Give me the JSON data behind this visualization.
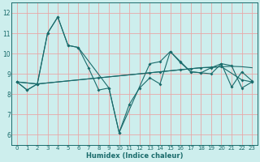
{
  "xlabel": "Humidex (Indice chaleur)",
  "bg_color": "#cdeeed",
  "grid_color": "#e8a8a8",
  "line_color": "#1a6b6b",
  "xlim": [
    -0.5,
    23.5
  ],
  "ylim": [
    5.5,
    12.5
  ],
  "xticks": [
    0,
    1,
    2,
    3,
    4,
    5,
    6,
    7,
    8,
    9,
    10,
    11,
    12,
    13,
    14,
    15,
    16,
    17,
    18,
    19,
    20,
    21,
    22,
    23
  ],
  "yticks": [
    6,
    7,
    8,
    9,
    10,
    11,
    12
  ],
  "line1_x": [
    0,
    1,
    2,
    3,
    4,
    5,
    6,
    7,
    8,
    9,
    10,
    11,
    12,
    13,
    14,
    15,
    16,
    17,
    18,
    19,
    20,
    21,
    22,
    23
  ],
  "line1_y": [
    8.6,
    8.2,
    8.5,
    11.0,
    11.8,
    10.4,
    10.3,
    9.3,
    8.2,
    8.3,
    6.1,
    7.5,
    8.3,
    8.8,
    8.5,
    10.1,
    9.6,
    9.1,
    9.05,
    9.0,
    9.5,
    9.4,
    8.3,
    8.6
  ],
  "line2_x": [
    0,
    2,
    3,
    4,
    5,
    6,
    7,
    8,
    9,
    10,
    11,
    12,
    13,
    14,
    15,
    16,
    17,
    18,
    19,
    20,
    21,
    22,
    23
  ],
  "line2_y": [
    8.6,
    8.5,
    8.55,
    8.6,
    8.65,
    8.7,
    8.75,
    8.8,
    8.85,
    8.9,
    8.95,
    9.0,
    9.05,
    9.1,
    9.15,
    9.2,
    9.25,
    9.3,
    9.32,
    9.35,
    9.37,
    9.35,
    9.3
  ],
  "line3_x": [
    0,
    1,
    2,
    3,
    4,
    5,
    6,
    9,
    10,
    13,
    14,
    15,
    16,
    17,
    18,
    19,
    20,
    21,
    22,
    23
  ],
  "line3_y": [
    8.6,
    8.2,
    8.5,
    11.0,
    11.8,
    10.4,
    10.3,
    8.3,
    6.1,
    9.5,
    9.6,
    10.1,
    9.55,
    9.1,
    9.05,
    9.3,
    9.5,
    8.35,
    9.1,
    8.65
  ],
  "line4_x": [
    0,
    2,
    8,
    13,
    14,
    16,
    17,
    18,
    19,
    20,
    22,
    23
  ],
  "line4_y": [
    8.6,
    8.5,
    8.8,
    9.05,
    9.1,
    9.2,
    9.25,
    9.3,
    9.32,
    9.35,
    8.7,
    8.6
  ]
}
